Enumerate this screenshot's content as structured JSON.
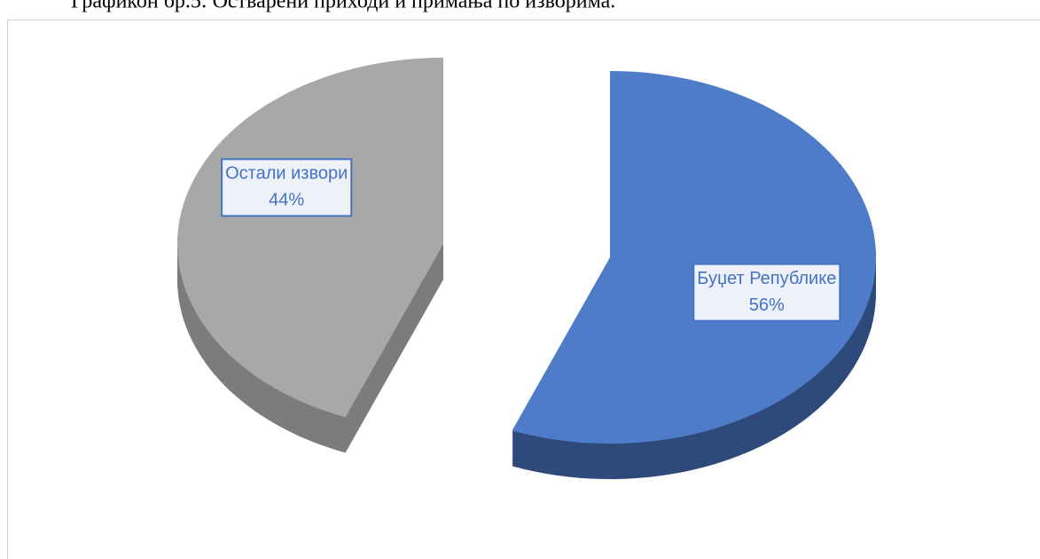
{
  "chart_data": {
    "type": "pie",
    "title": "Графикон бр.5: Остварени приходи и примања по изворима.",
    "categories": [
      "Буџет Републике",
      "Остали извори"
    ],
    "values": [
      56,
      44
    ],
    "value_labels": [
      "56%",
      "44%"
    ],
    "colors": [
      "#4f7cc9",
      "#a8a8a8"
    ],
    "side_colors": [
      "#2e4a7a",
      "#7c7c7c"
    ]
  }
}
